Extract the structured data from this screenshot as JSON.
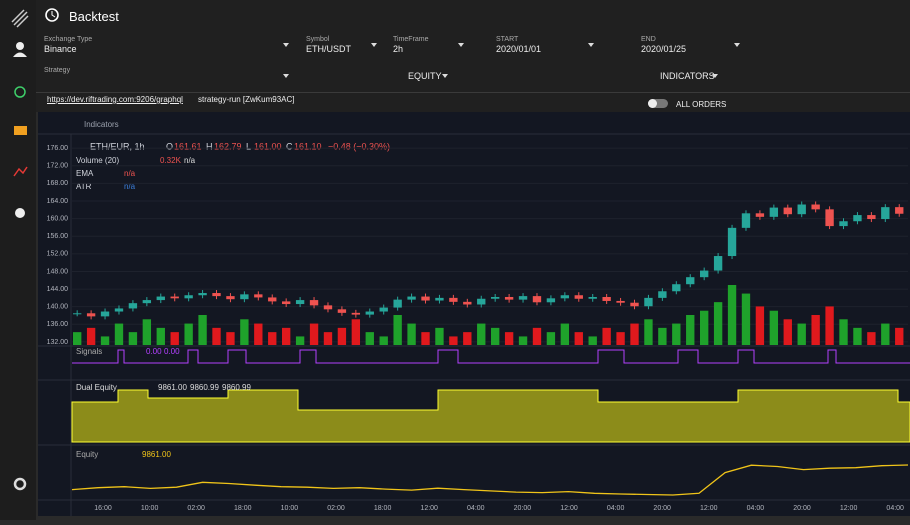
{
  "header": {
    "title": "Backtest"
  },
  "form": {
    "fields": [
      {
        "label": "Exchange Type",
        "value": "Binance"
      },
      {
        "label": "Symbol",
        "value": "ETH/USDT"
      },
      {
        "label": "TimeFrame",
        "value": "2h"
      },
      {
        "label": "START",
        "value": "2020/01/01"
      },
      {
        "label": "END",
        "value": "2020/01/25"
      }
    ],
    "strategy_label": "Strategy",
    "equity": "EQUITY",
    "indicators": "INDICATORS",
    "url": "https://dev.riftrading.com:9206/graphql",
    "run": "strategy-run [ZwKum93AC]",
    "all_orders": "ALL ORDERS"
  },
  "toolbar": {
    "indicators": "Indicators"
  },
  "legend": {
    "symbol": "ETH/EUR, 1h",
    "ohlc": [
      {
        "key": "O",
        "value": "161.61"
      },
      {
        "key": "H",
        "value": "162.79"
      },
      {
        "key": "L",
        "value": "161.00"
      },
      {
        "key": "C",
        "value": "161.10"
      }
    ],
    "change": "−0.48 (−0.30%)",
    "studies": [
      {
        "name": "Volume (20)",
        "value": "0.32K",
        "extra": "n/a"
      },
      {
        "name": "EMA",
        "value": "n/a"
      },
      {
        "name": "ATR",
        "value": "n/a"
      }
    ]
  },
  "panes": {
    "signals": {
      "title": "Signals",
      "values": [
        "0.00",
        "0.00"
      ]
    },
    "dual_equity": {
      "title": "Dual Equity",
      "values": [
        "9861.00",
        "9860.99",
        "9860.99"
      ]
    },
    "equity": {
      "title": "Equity",
      "value": "9861.00"
    }
  },
  "chart_data": {
    "type": "candlestick",
    "values": [
      138.5,
      137.8,
      138.9,
      139.6,
      140.8,
      141.5,
      142.3,
      141.9,
      142.6,
      143.1,
      142.4,
      141.7,
      142.8,
      142.1,
      141.2,
      140.6,
      141.5,
      140.3,
      139.4,
      138.6,
      138.2,
      138.9,
      139.8,
      141.6,
      142.3,
      141.4,
      142.0,
      141.1,
      140.5,
      141.8,
      142.2,
      141.6,
      142.4,
      141.0,
      141.9,
      142.6,
      141.8,
      142.2,
      141.3,
      140.9,
      140.1,
      142.0,
      143.5,
      145.1,
      146.7,
      148.2,
      151.5,
      157.9,
      161.2,
      160.4,
      162.5,
      161.0,
      163.2,
      162.1,
      158.3,
      159.4,
      160.8,
      159.9,
      162.6,
      161.1
    ],
    "volumes": [
      3,
      4,
      2,
      5,
      3,
      6,
      4,
      3,
      5,
      7,
      4,
      3,
      6,
      5,
      3,
      4,
      2,
      5,
      3,
      4,
      6,
      3,
      2,
      7,
      5,
      3,
      4,
      2,
      3,
      5,
      4,
      3,
      2,
      4,
      3,
      5,
      3,
      2,
      4,
      3,
      5,
      6,
      4,
      5,
      7,
      8,
      10,
      14,
      12,
      9,
      8,
      6,
      5,
      7,
      9,
      6,
      4,
      3,
      5,
      4
    ],
    "ylim": [
      131.3,
      178.3
    ],
    "yticks": [
      {
        "value": 176,
        "label": "176.00"
      },
      {
        "value": 172,
        "label": "172.00"
      },
      {
        "value": 168,
        "label": "168.00"
      },
      {
        "value": 164,
        "label": "164.00"
      },
      {
        "value": 160,
        "label": "160.00"
      },
      {
        "value": 156,
        "label": "156.00"
      },
      {
        "value": 152,
        "label": "152.00"
      },
      {
        "value": 148,
        "label": "148.00"
      },
      {
        "value": 144,
        "label": "144.00"
      },
      {
        "value": 140,
        "label": "140.00"
      },
      {
        "value": 136,
        "label": "136.00"
      },
      {
        "value": 132,
        "label": "132.00"
      }
    ],
    "time_labels": [
      "16:00",
      "10:00",
      "02:00",
      "18:00",
      "10:00",
      "02:00",
      "18:00",
      "12:00",
      "04:00",
      "20:00",
      "12:00",
      "04:00",
      "20:00",
      "12:00",
      "04:00",
      "20:00",
      "12:00",
      "04:00"
    ],
    "equity": [
      9760,
      9768,
      9772,
      9765,
      9770,
      9790,
      9785,
      9778,
      9772,
      9770,
      9765,
      9768,
      9762,
      9758,
      9766,
      9760,
      9755,
      9750,
      9748,
      9752,
      9745,
      9742,
      9740,
      9738,
      9745,
      9830,
      9860,
      9855,
      9842,
      9848,
      9850,
      9858,
      9861
    ]
  }
}
